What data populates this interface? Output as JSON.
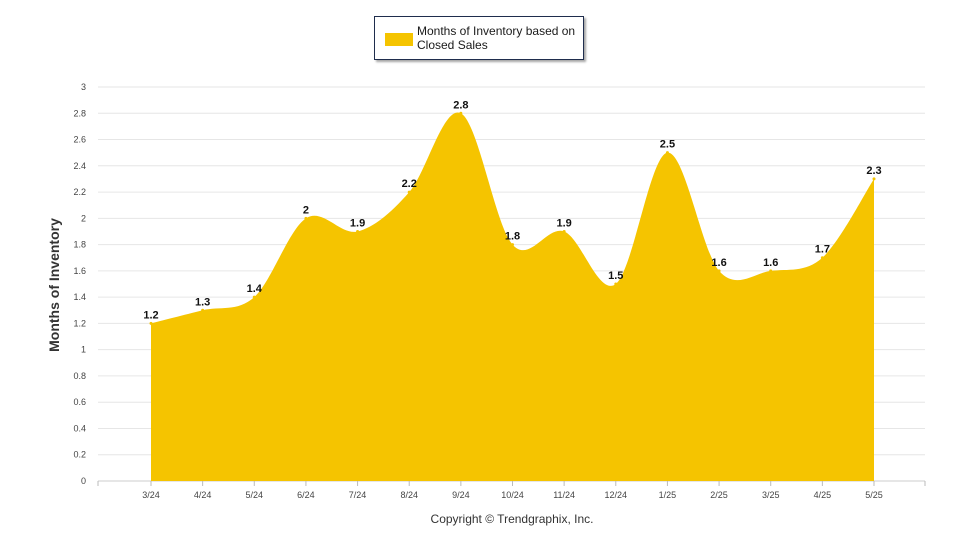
{
  "chart_data": {
    "type": "area",
    "categories": [
      "3/24",
      "4/24",
      "5/24",
      "6/24",
      "7/24",
      "8/24",
      "9/24",
      "10/24",
      "11/24",
      "12/24",
      "1/25",
      "2/25",
      "3/25",
      "4/25",
      "5/25"
    ],
    "series": [
      {
        "name": "Months of Inventory based on Closed Sales",
        "values": [
          1.2,
          1.3,
          1.4,
          2,
          1.9,
          2.2,
          2.8,
          1.8,
          1.9,
          1.5,
          2.5,
          1.6,
          1.6,
          1.7,
          2.3
        ]
      }
    ],
    "data_labels": [
      "1.2",
      "1.3",
      "1.4",
      "2",
      "1.9",
      "2.2",
      "2.8",
      "1.8",
      "1.9",
      "1.5",
      "2.5",
      "1.6",
      "1.6",
      "1.7",
      "2.3"
    ],
    "ylabel": "Months of Inventory",
    "xlabel": "",
    "ylim": [
      0,
      3
    ],
    "yticks": [
      "0",
      "0.2",
      "0.4",
      "0.6",
      "0.8",
      "1",
      "1.2",
      "1.4",
      "1.6",
      "1.8",
      "2",
      "2.2",
      "2.4",
      "2.6",
      "2.8",
      "3"
    ],
    "grid": true,
    "legend_position": "top-center",
    "color": "#f5c400"
  },
  "legend": {
    "label": "Months of Inventory based on Closed Sales"
  },
  "footer": {
    "copyright": "Copyright © Trendgraphix, Inc."
  }
}
